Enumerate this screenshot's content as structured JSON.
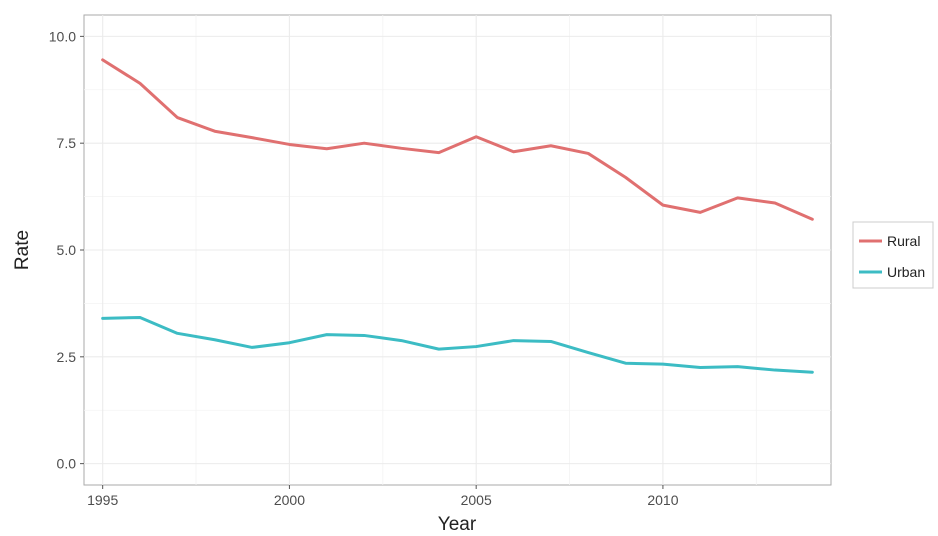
{
  "chart_data": {
    "type": "line",
    "xlabel": "Year",
    "ylabel": "Rate",
    "xlim": [
      1994.5,
      2014.5
    ],
    "ylim": [
      -0.5,
      10.5
    ],
    "x_ticks": [
      {
        "value": 1995,
        "label": "1995"
      },
      {
        "value": 2000,
        "label": "2000"
      },
      {
        "value": 2005,
        "label": "2005"
      },
      {
        "value": 2010,
        "label": "2010"
      }
    ],
    "y_ticks": [
      {
        "value": 0.0,
        "label": "0.0"
      },
      {
        "value": 2.5,
        "label": "2.5"
      },
      {
        "value": 5.0,
        "label": "5.0"
      },
      {
        "value": 7.5,
        "label": "7.5"
      },
      {
        "value": 10.0,
        "label": "10.0"
      }
    ],
    "grid": true,
    "legend_position": "right",
    "x": [
      1995,
      1996,
      1997,
      1998,
      1999,
      2000,
      2001,
      2002,
      2003,
      2004,
      2005,
      2006,
      2007,
      2008,
      2009,
      2010,
      2011,
      2012,
      2013,
      2014
    ],
    "series": [
      {
        "name": "Rural",
        "color": "#E07070",
        "values": [
          9.45,
          8.9,
          8.1,
          7.78,
          7.63,
          7.47,
          7.37,
          7.5,
          7.38,
          7.28,
          7.65,
          7.3,
          7.44,
          7.26,
          6.7,
          6.05,
          5.88,
          6.22,
          6.1,
          5.72
        ]
      },
      {
        "name": "Urban",
        "color": "#3CBCC4",
        "values": [
          3.4,
          3.42,
          3.05,
          2.9,
          2.72,
          2.83,
          3.02,
          3.0,
          2.88,
          2.68,
          2.74,
          2.88,
          2.86,
          2.6,
          2.35,
          2.33,
          2.25,
          2.27,
          2.19,
          2.14
        ]
      }
    ]
  }
}
